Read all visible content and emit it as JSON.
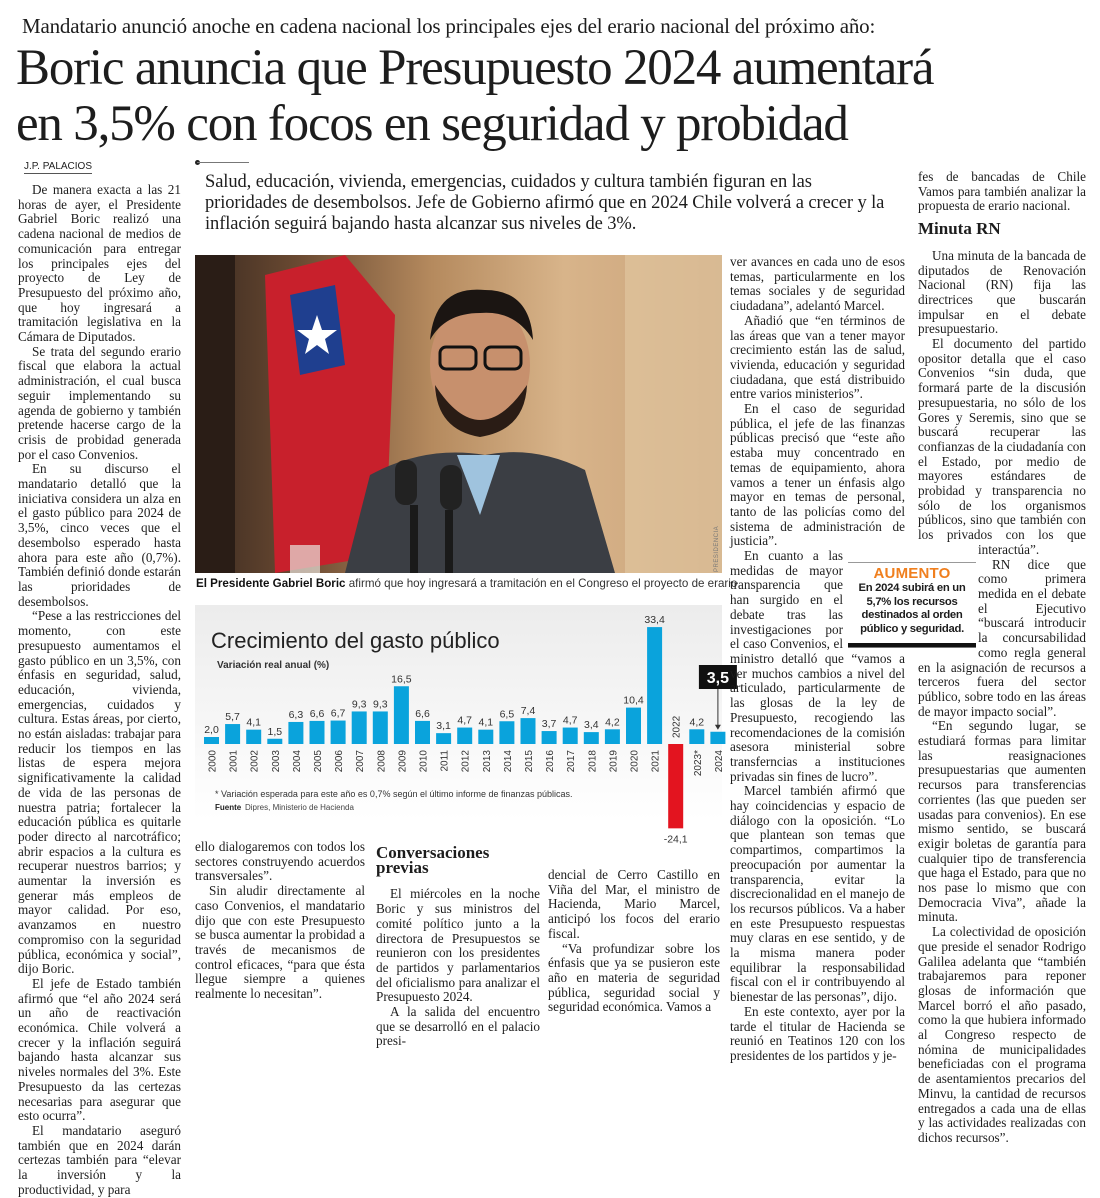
{
  "kicker": "Mandatario anunció anoche en cadena nacional los principales ejes del erario nacional del próximo año:",
  "headline": [
    "Boric anuncia que Presupuesto 2024 aumentará",
    "en 3,5% con focos en seguridad y probidad"
  ],
  "byline": "J.P. PALACIOS",
  "deck": "Salud, educación, vivienda, emergencias, cuidados y cultura también figuran en las prioridades de desembolsos. Jefe de Gobierno afirmó que en 2024 Chile volverá a crecer y la inflación seguirá bajando hasta alcanzar sus niveles de 3%.",
  "photo": {
    "caption_bold": "El Presidente Gabriel Boric",
    "caption_rest": " afirmó que hoy ingresará a tramitación en el Congreso el proyecto de erario.",
    "credit": "PRESIDENCIA"
  },
  "col1": [
    "De manera exacta a las 21 horas de ayer, el Presidente Gabriel Boric realizó una cadena nacional de medios de comunicación para entregar los principales ejes del proyecto de Ley de Presupuesto del próximo año, que hoy ingresará a tramitación legislativa en la Cámara de Diputados.",
    "Se trata del segundo erario fiscal que elabora la actual administración, el cual busca seguir implementando su agenda de gobierno y también pretende hacerse cargo de la crisis de probidad generada por el caso Convenios.",
    "En su discurso el mandatario detalló que la iniciativa considera un alza en el gasto público para 2024 de 3,5%, cinco veces que el desembolso esperado hasta ahora para este año (0,7%). También definió donde estarán las prioridades de desembolsos.",
    "“Pese a las restricciones del momento, con este presupuesto aumentamos el gasto público en un 3,5%, con énfasis en seguridad, salud, educación, vivienda, emergencias, cuidados y cultura. Estas áreas, por cierto, no están aisladas: trabajar para reducir los tiempos en las listas de espera mejora significativamente la calidad de vida de las personas de nuestra patria; fortalecer la educación pública es quitarle poder directo al narcotráfico; abrir espacios a la cultura es recuperar nuestros barrios; y aumentar la inversión es generar más empleos de mayor calidad. Por eso, avanzamos en nuestro compromiso con la seguridad pública, económica y social”, dijo Boric.",
    "El jefe de Estado también afirmó que “el año 2024 será un año de reactivación económica. Chile volverá a crecer y la inflación seguirá bajando hasta alcanzar sus niveles normales del 3%. Este Presupuesto da las certezas necesarias para asegurar que esto ocurra”.",
    "El mandatario aseguró también que en 2024 darán certezas también para “elevar la inversión y la productividad, y para"
  ],
  "col2": [
    "ello dialogaremos con todos los sectores construyendo acuerdos transversales”.",
    "Sin aludir directamente al caso Convenios, el mandatario dijo que con este Presupuesto se busca aumentar la probidad a través de mecanismos de control eficaces, “para que ésta llegue siempre a quienes realmente lo necesitan”."
  ],
  "col3": {
    "heading": "Conversaciones previas",
    "paragraphs": [
      "El miércoles en la noche Boric y sus ministros del comité político junto a la directora de Presupuestos se reunieron con los presidentes de partidos y parlamentarios del oficialismo para analizar el Presupuesto 2024.",
      "A la salida del encuentro que se desarrolló en el palacio presi-"
    ]
  },
  "col3b": [
    "dencial de Cerro Castillo en Viña del Mar, el ministro de Hacienda, Mario Marcel, anticipó los focos del erario fiscal.",
    "“Va profundizar sobre los énfasis que ya se pusieron este año en materia de seguridad pública, seguridad social y seguridad económica. Vamos a"
  ],
  "col4": [
    "ver avances en cada uno de esos temas, particularmente en los temas sociales y de seguridad ciudadana”, adelantó Marcel.",
    "Añadió que “en términos de las áreas que van a tener mayor crecimiento están las de salud, vivienda, educación y seguridad ciudadana, que está distribuido entre varios ministerios”.",
    "En el caso de seguridad pública, el jefe de las finanzas públicas precisó que “este año estaba muy concentrado en temas de equipamiento, ahora vamos a tener un énfasis algo mayor en temas de personal, tanto de las policías como del sistema de administración de justicia”.",
    "En cuanto a las medidas de mayor transparencia que han surgido en el debate tras las investigaciones por el caso Convenios, el ministro detalló que “vamos a ver muchos cambios a nivel del articulado, particularmente de las glosas de la ley de Presupuesto, recogiendo las recomendaciones de la comisión asesora ministerial sobre transferncias a instituciones privadas sin fines de lucro”.",
    "Marcel también afirmó que hay coincidencias y espacio de diálogo con la oposición. “Lo que plantean son temas que compartimos, compartimos la preocupación por aumentar la transparencia, evitar la discrecionalidad en el manejo de los recursos públicos. Va a haber en este Presupuesto respuestas muy claras en ese sentido, y de la misma manera poder equilibrar la responsabilidad fiscal con el ir contribuyendo al bienestar de las personas”, dijo.",
    "En este contexto, ayer por la tarde el titular de Hacienda se reunió en Teatinos 120 con los presidentes de los partidos y je-"
  ],
  "col5": {
    "lead": "fes de bancadas de Chile Vamos para también analizar la propuesta de erario nacional.",
    "heading": "Minuta RN",
    "paragraphs": [
      "Una minuta de la bancada de diputados de Renovación Nacional (RN) fija las directrices que buscarán impulsar en el debate presupuestario.",
      "El documento del partido opositor detalla que el caso Convenios “sin duda, que formará parte de la discusión presupuestaria, no sólo de los Gores y Seremis, sino que se buscará recuperar las confianzas de la ciudadanía con el Estado, por medio de mayores estándares de probidad y transparencia no sólo de los organismos públicos, sino que también con los privados con los que interactúa”.",
      "RN dice que como primera medida en el debate el Ejecutivo “buscará introducir la concursabilidad como regla general en la asignación de recursos a terceros fuera del sector público, sobre todo en las áreas de mayor impacto social”.",
      "“En segundo lugar, se estudiará formas para limitar las reasignaciones presupuestarias que aumenten recursos para transferencias corrientes (las que pueden ser usadas para convenios). En ese mismo sentido, se buscará exigir boletas de garantía para cualquier tipo de transferencia que haga el Estado, para que no nos pase lo mismo que con Democracia Viva”, añade la minuta.",
      "La colectividad de oposición que preside el senador Rodrigo Galilea adelanta que “también trabajaremos para reponer glosas de información que Marcel borró el año pasado, como la que hubiera informado al Congreso respecto de nómina de municipalidades beneficiadas con el programa de asentamientos precarios del Minvu, la cantidad de recursos entregados a cada una de ellas y las actividades realizadas con dichos recursos”."
    ]
  },
  "box": {
    "title": "AUMENTO",
    "body": "En 2024 subirá en un 5,7% los recursos destinados al orden público y seguridad.",
    "title_color": "#f07f1e"
  },
  "chart_data": {
    "type": "bar",
    "title": "Crecimiento del gasto público",
    "subtitle": "Variación real anual (%)",
    "categories": [
      "2000",
      "2001",
      "2002",
      "2003",
      "2004",
      "2005",
      "2006",
      "2007",
      "2008",
      "2009",
      "2010",
      "2011",
      "2012",
      "2013",
      "2014",
      "2015",
      "2016",
      "2017",
      "2018",
      "2019",
      "2020",
      "2021",
      "2022",
      "2023*",
      "2024"
    ],
    "values": [
      2.0,
      5.7,
      4.1,
      1.5,
      6.3,
      6.6,
      6.7,
      9.3,
      9.3,
      16.5,
      6.6,
      3.1,
      4.7,
      4.1,
      6.5,
      7.4,
      3.7,
      4.7,
      3.4,
      4.2,
      10.4,
      33.4,
      -24.1,
      4.2,
      3.5
    ],
    "value_labels": [
      "2,0",
      "5,7",
      "4,1",
      "1,5",
      "6,3",
      "6,6",
      "6,7",
      "9,3",
      "9,3",
      "16,5",
      "6,6",
      "3,1",
      "4,7",
      "4,1",
      "6,5",
      "7,4",
      "3,7",
      "4,7",
      "3,4",
      "4,2",
      "10,4",
      "33,4",
      "-24,1",
      "4,2",
      "3,5"
    ],
    "highlight": {
      "category": "2024",
      "label": "3,5"
    },
    "colors": {
      "positive": "#0aa3dc",
      "negative": "#e3141f",
      "highlight_box": "#111111"
    },
    "footnote": "* Variación esperada para este año es 0,7% según el último informe de finanzas públicas.",
    "source_label": "Fuente",
    "source": "Dipres, Ministerio de Hacienda",
    "grid": false
  }
}
